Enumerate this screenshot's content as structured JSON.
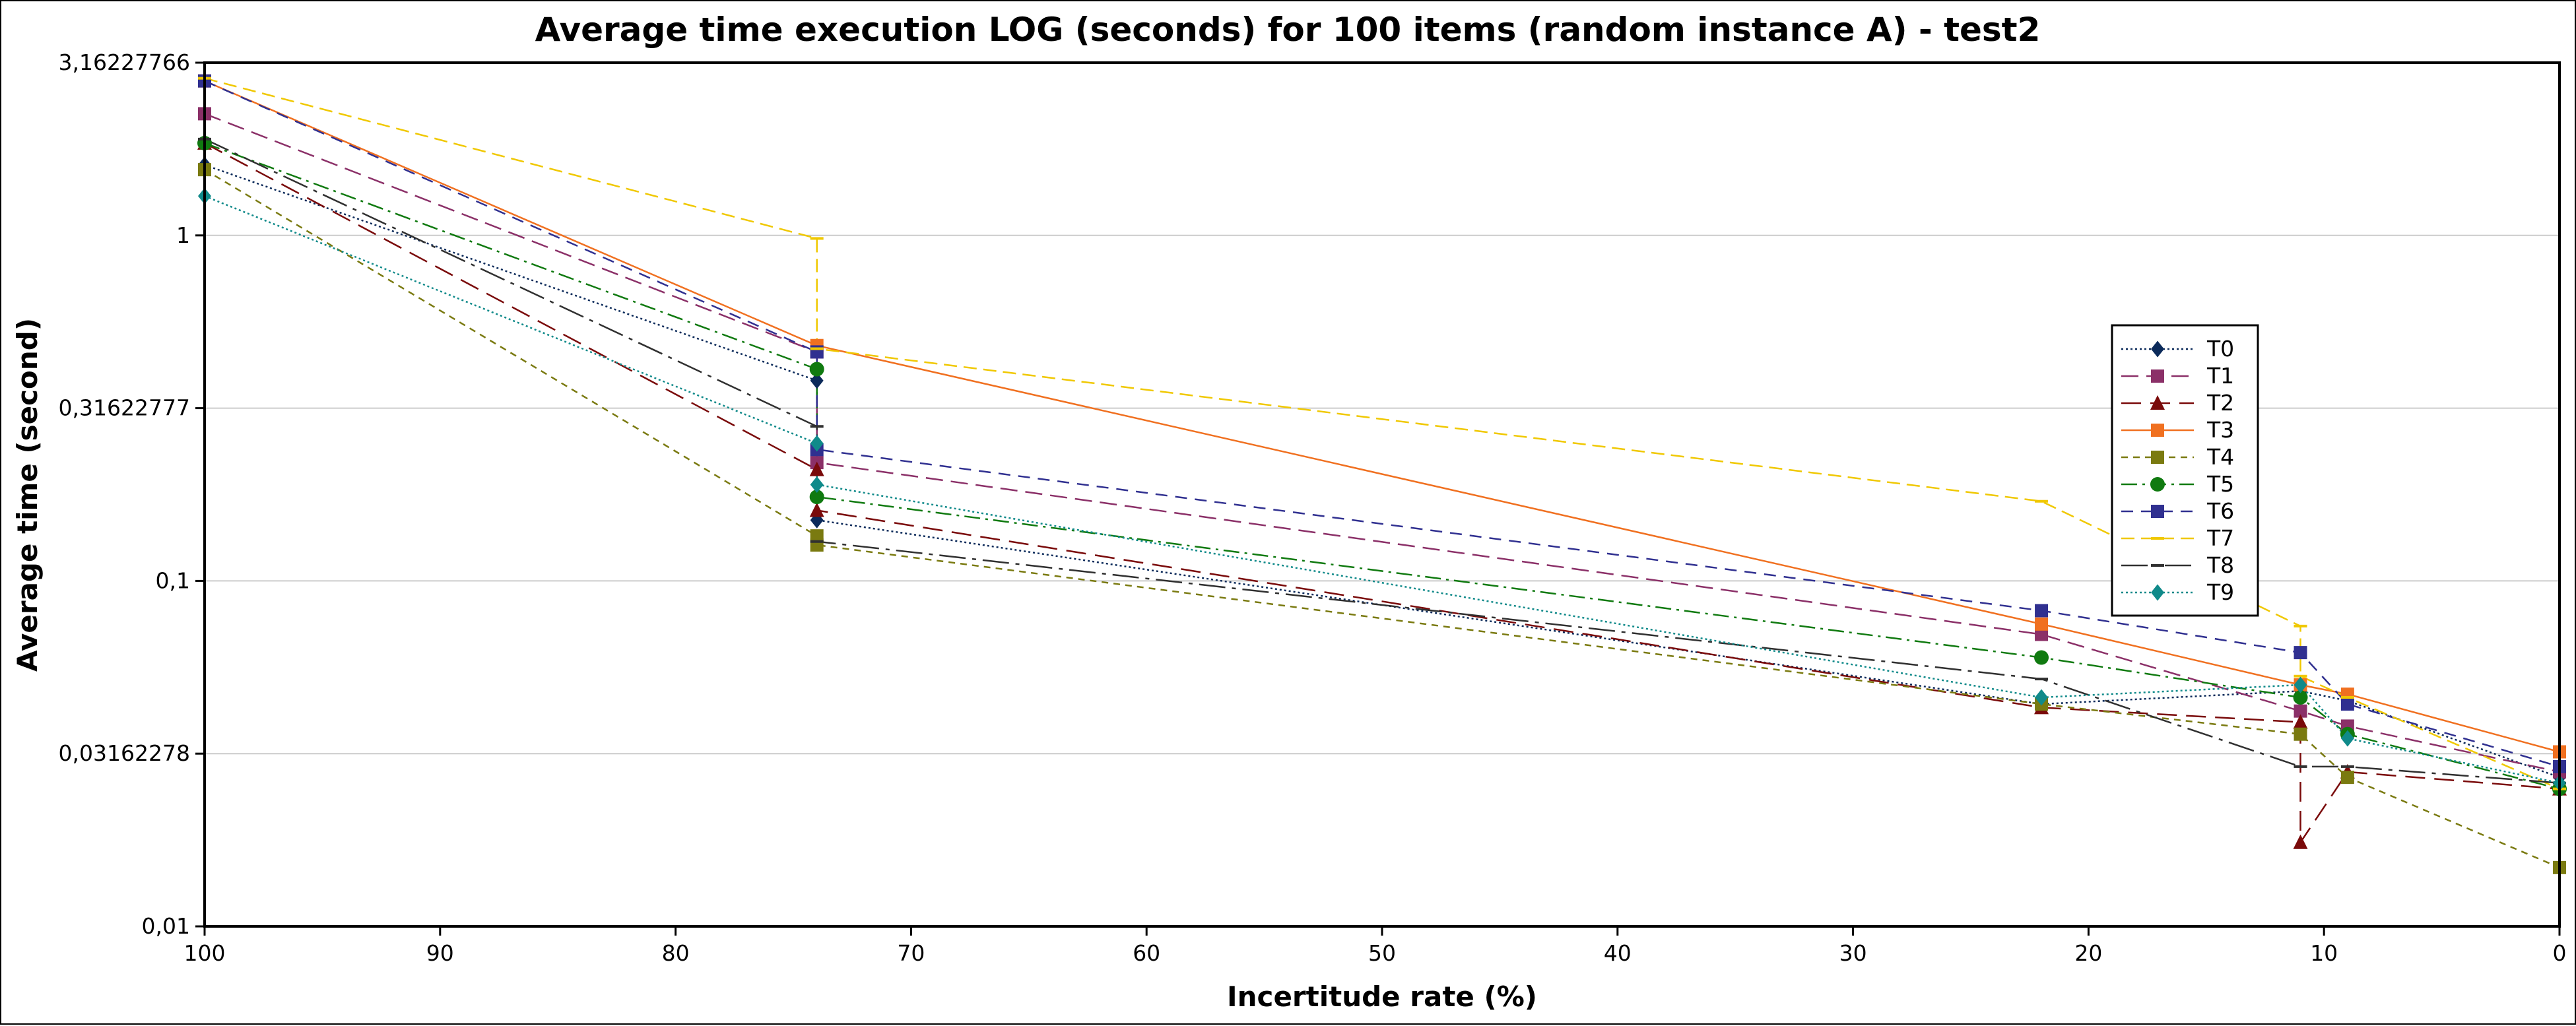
{
  "chart_data": {
    "type": "line",
    "title": "Average time execution LOG (seconds) for 100 items (random instance A) - test2",
    "xlabel": "Incertitude rate (%)",
    "ylabel": "Average time (second)",
    "x_reversed": true,
    "xlim": [
      100,
      0
    ],
    "ylim": [
      0.01,
      3.16227766
    ],
    "y_scale": "log",
    "grid": "horizontal",
    "legend_position": "right",
    "x_ticks": [
      {
        "value": 100,
        "label": "100"
      },
      {
        "value": 90,
        "label": "90"
      },
      {
        "value": 80,
        "label": "80"
      },
      {
        "value": 70,
        "label": "70"
      },
      {
        "value": 60,
        "label": "60"
      },
      {
        "value": 50,
        "label": "50"
      },
      {
        "value": 40,
        "label": "40"
      },
      {
        "value": 30,
        "label": "30"
      },
      {
        "value": 20,
        "label": "20"
      },
      {
        "value": 10,
        "label": "10"
      },
      {
        "value": 0,
        "label": "0"
      }
    ],
    "y_ticks": [
      {
        "value": 0.01,
        "label": "0,01"
      },
      {
        "value": 0.03162278,
        "label": "0,03162278"
      },
      {
        "value": 0.1,
        "label": "0,1"
      },
      {
        "value": 0.31622777,
        "label": "0,31622777"
      },
      {
        "value": 1,
        "label": "1"
      },
      {
        "value": 3.16227766,
        "label": "3,16227766"
      }
    ],
    "series": [
      {
        "name": "T0",
        "color": "#0b2a5a",
        "marker": "diamond",
        "dash": "3,4",
        "points": [
          [
            100,
            1.6
          ],
          [
            74,
            0.38
          ],
          [
            74,
            0.15
          ],
          [
            22,
            0.044
          ],
          [
            11,
            0.048
          ],
          [
            9,
            0.045
          ],
          [
            0,
            0.027
          ]
        ]
      },
      {
        "name": "T1",
        "color": "#8b3068",
        "marker": "square",
        "dash": "26,12",
        "points": [
          [
            100,
            2.25
          ],
          [
            74,
            0.46
          ],
          [
            74,
            0.22
          ],
          [
            22,
            0.07
          ],
          [
            11,
            0.042
          ],
          [
            9,
            0.038
          ],
          [
            0,
            0.028
          ]
        ]
      },
      {
        "name": "T2",
        "color": "#7a0a0a",
        "marker": "triangle",
        "dash": "30,14",
        "points": [
          [
            100,
            1.85
          ],
          [
            74,
            0.21
          ],
          [
            74,
            0.16
          ],
          [
            22,
            0.043
          ],
          [
            11,
            0.039
          ],
          [
            11,
            0.0175
          ],
          [
            9,
            0.028
          ],
          [
            0,
            0.025
          ]
        ]
      },
      {
        "name": "T3",
        "color": "#f07020",
        "marker": "square",
        "dash": "",
        "points": [
          [
            100,
            2.8
          ],
          [
            74,
            0.48
          ],
          [
            22,
            0.075
          ],
          [
            11,
            0.05
          ],
          [
            9,
            0.047
          ],
          [
            0,
            0.032
          ]
        ]
      },
      {
        "name": "T4",
        "color": "#7a7a10",
        "marker": "square",
        "dash": "10,8",
        "points": [
          [
            100,
            1.55
          ],
          [
            74,
            0.135
          ],
          [
            74,
            0.127
          ],
          [
            22,
            0.044
          ],
          [
            11,
            0.036
          ],
          [
            9,
            0.027
          ],
          [
            0,
            0.0148
          ]
        ]
      },
      {
        "name": "T5",
        "color": "#107a10",
        "marker": "circle",
        "dash": "24,8,4,8",
        "points": [
          [
            100,
            1.85
          ],
          [
            74,
            0.41
          ],
          [
            74,
            0.175
          ],
          [
            22,
            0.06
          ],
          [
            11,
            0.046
          ],
          [
            9,
            0.036
          ],
          [
            0,
            0.025
          ]
        ]
      },
      {
        "name": "T6",
        "color": "#303090",
        "marker": "square",
        "dash": "18,12",
        "points": [
          [
            100,
            2.8
          ],
          [
            74,
            0.46
          ],
          [
            74,
            0.24
          ],
          [
            22,
            0.082
          ],
          [
            11,
            0.062
          ],
          [
            9,
            0.044
          ],
          [
            0,
            0.029
          ]
        ]
      },
      {
        "name": "T7",
        "color": "#f0c800",
        "marker": "dash",
        "dash": "20,10",
        "points": [
          [
            100,
            2.85
          ],
          [
            74,
            0.98
          ],
          [
            74,
            0.47
          ],
          [
            22,
            0.17
          ],
          [
            11,
            0.074
          ],
          [
            11,
            0.053
          ],
          [
            9,
            0.046
          ],
          [
            0,
            0.025
          ]
        ]
      },
      {
        "name": "T8",
        "color": "#303030",
        "marker": "dash",
        "dash": "40,10,6,10",
        "points": [
          [
            100,
            1.9
          ],
          [
            74,
            0.28
          ],
          [
            74,
            0.13
          ],
          [
            22,
            0.052
          ],
          [
            11,
            0.029
          ],
          [
            9,
            0.029
          ],
          [
            0,
            0.026
          ]
        ]
      },
      {
        "name": "T9",
        "color": "#108a8a",
        "marker": "diamond",
        "dash": "3,4",
        "points": [
          [
            100,
            1.3
          ],
          [
            74,
            0.25
          ],
          [
            74,
            0.19
          ],
          [
            22,
            0.046
          ],
          [
            11,
            0.05
          ],
          [
            9,
            0.035
          ],
          [
            0,
            0.026
          ]
        ]
      }
    ]
  }
}
